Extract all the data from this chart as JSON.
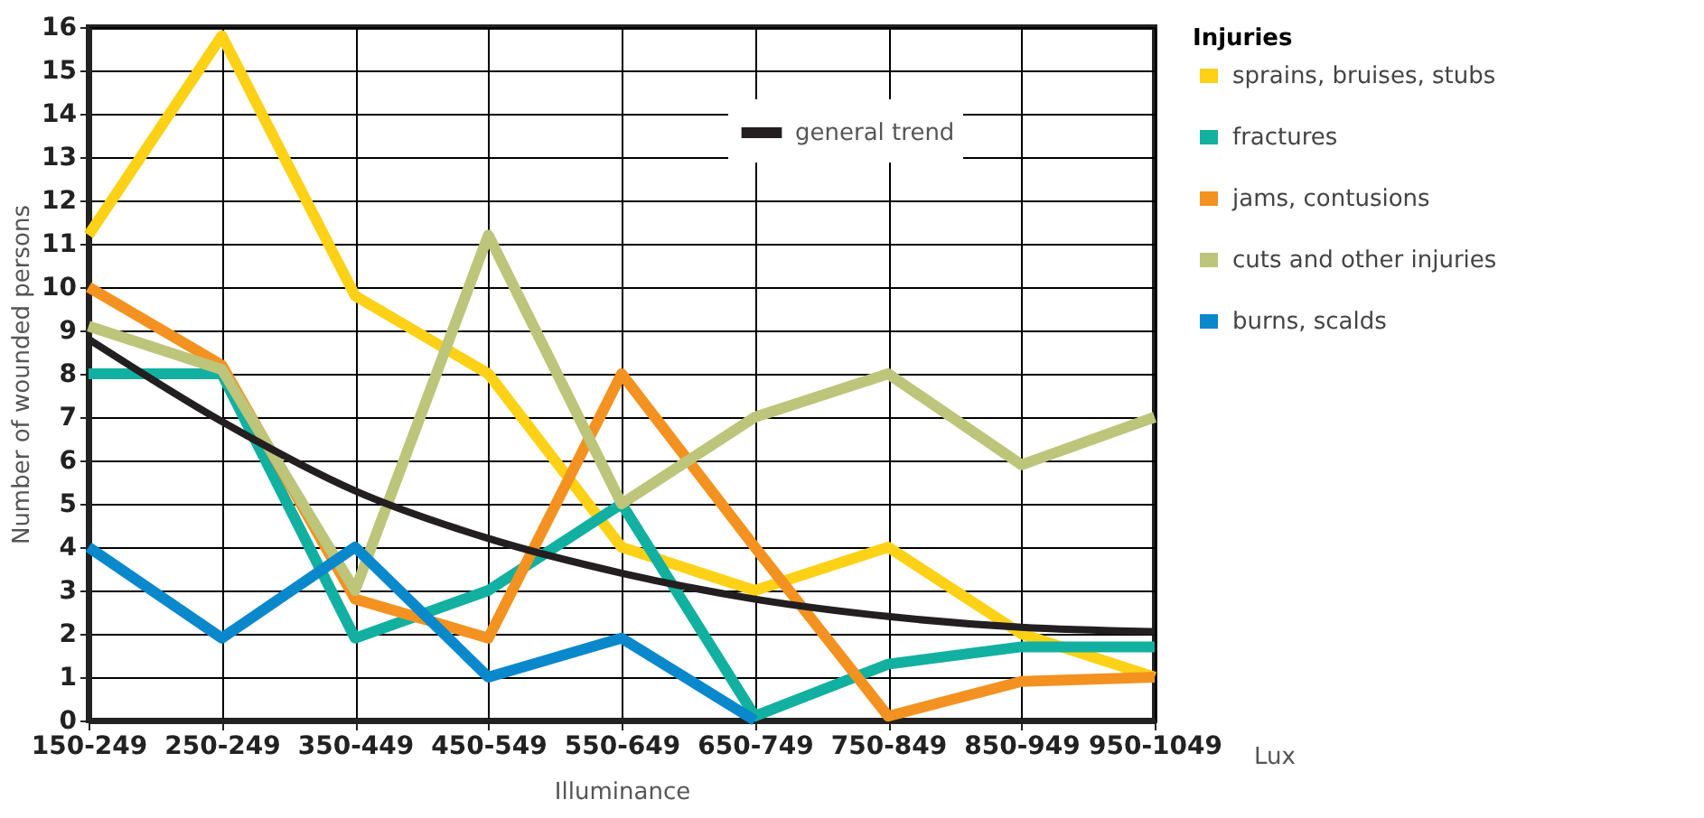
{
  "chart_data": {
    "type": "line",
    "xlabel": "Illuminance",
    "ylabel": "Number of wounded persons",
    "legend_title": "Injuries",
    "categories": [
      "150-249",
      "250-249",
      "350-449",
      "450-549",
      "550-649",
      "650-749",
      "750-849",
      "850-949",
      "950-1049"
    ],
    "series": [
      {
        "name": "sprains, bruises, stubs",
        "color": "#fdd116",
        "values": [
          11.2,
          15.8,
          9.8,
          8,
          4,
          3,
          4,
          2,
          1
        ]
      },
      {
        "name": "fractures",
        "color": "#12b0a0",
        "values": [
          8,
          8,
          1.9,
          3,
          5,
          0.1,
          1.3,
          1.7,
          1.7
        ]
      },
      {
        "name": "jams, contusions",
        "color": "#f39220",
        "values": [
          10,
          8.2,
          2.8,
          1.9,
          8,
          4,
          0.1,
          0.9,
          1
        ]
      },
      {
        "name": "cuts and other injuries",
        "color": "#bcc57a",
        "values": [
          9.1,
          8.1,
          3,
          11.2,
          5,
          7,
          8,
          5.9,
          7
        ]
      },
      {
        "name": "burns, scalds",
        "color": "#0a88cc",
        "values": [
          4,
          1.9,
          4,
          1,
          1.9,
          0,
          null,
          null,
          null
        ]
      },
      {
        "name": "general trend",
        "color": "#231f20",
        "values": [
          8.8,
          6.9,
          5.3,
          4.2,
          3.4,
          2.8,
          2.4,
          2.15,
          2.05
        ]
      }
    ],
    "ylim": [
      0,
      16
    ],
    "yticks": [
      0,
      1,
      2,
      3,
      4,
      5,
      6,
      7,
      8,
      9,
      10,
      11,
      12,
      13,
      14,
      15,
      16
    ],
    "grid": true,
    "legend": "right",
    "marker": "none",
    "line_style": "solid",
    "annotations": [
      "Lux"
    ]
  }
}
